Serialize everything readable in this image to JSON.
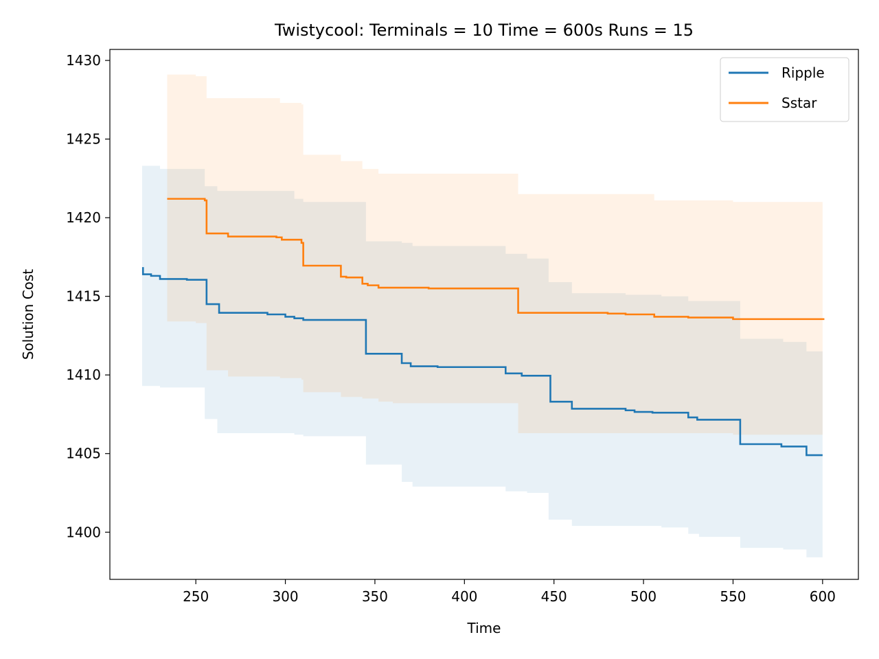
{
  "chart_data": {
    "type": "line",
    "title": "Twistycool:  Terminals = 10  Time = 600s  Runs = 15",
    "xlabel": "Time",
    "ylabel": "Solution Cost",
    "xlim": [
      202,
      620
    ],
    "ylim": [
      1397,
      1430.7
    ],
    "xticks": [
      250,
      300,
      350,
      400,
      450,
      500,
      550,
      600
    ],
    "yticks": [
      1400,
      1405,
      1410,
      1415,
      1420,
      1425,
      1430
    ],
    "grid": false,
    "legend": "top-right",
    "series": [
      {
        "name": "Ripple",
        "color": "#1f77b4",
        "band_color": "#1f77b4",
        "band_opacity": 0.1,
        "steps": [
          [
            220,
            1416.8
          ],
          [
            220.5,
            1416.4
          ],
          [
            225,
            1416.3
          ],
          [
            230,
            1416.1
          ],
          [
            245,
            1416.05
          ],
          [
            256,
            1414.5
          ],
          [
            263,
            1413.95
          ],
          [
            290,
            1413.85
          ],
          [
            300,
            1413.7
          ],
          [
            305,
            1413.6
          ],
          [
            310,
            1413.5
          ],
          [
            345,
            1411.35
          ],
          [
            365,
            1410.75
          ],
          [
            370,
            1410.55
          ],
          [
            385,
            1410.5
          ],
          [
            423,
            1410.1
          ],
          [
            432,
            1409.95
          ],
          [
            448,
            1408.3
          ],
          [
            460,
            1407.85
          ],
          [
            490,
            1407.75
          ],
          [
            495,
            1407.65
          ],
          [
            505,
            1407.6
          ],
          [
            525,
            1407.3
          ],
          [
            530,
            1407.15
          ],
          [
            554,
            1405.6
          ],
          [
            577,
            1405.45
          ],
          [
            591,
            1404.9
          ],
          [
            600,
            1404.9
          ]
        ],
        "band_steps": [
          [
            220,
            1409.3,
            1423.3
          ],
          [
            230,
            1409.2,
            1423.1
          ],
          [
            255,
            1407.2,
            1422.0
          ],
          [
            262,
            1406.3,
            1421.7
          ],
          [
            305,
            1406.2,
            1421.2
          ],
          [
            310,
            1406.1,
            1421.0
          ],
          [
            345,
            1404.3,
            1418.5
          ],
          [
            365,
            1403.2,
            1418.4
          ],
          [
            371,
            1402.9,
            1418.2
          ],
          [
            423,
            1402.6,
            1417.7
          ],
          [
            435,
            1402.5,
            1417.4
          ],
          [
            447,
            1400.8,
            1415.9
          ],
          [
            460,
            1400.4,
            1415.2
          ],
          [
            490,
            1400.4,
            1415.1
          ],
          [
            510,
            1400.3,
            1415.0
          ],
          [
            525,
            1399.9,
            1414.7
          ],
          [
            531,
            1399.7,
            1414.7
          ],
          [
            554,
            1399.0,
            1412.3
          ],
          [
            578,
            1398.9,
            1412.1
          ],
          [
            591,
            1398.4,
            1411.5
          ],
          [
            600,
            1398.4,
            1411.5
          ]
        ]
      },
      {
        "name": "Sstar",
        "color": "#ff7f0e",
        "band_color": "#ff7f0e",
        "band_opacity": 0.1,
        "steps": [
          [
            234,
            1421.2
          ],
          [
            255,
            1421.1
          ],
          [
            256,
            1419.0
          ],
          [
            268,
            1418.8
          ],
          [
            295,
            1418.75
          ],
          [
            298,
            1418.6
          ],
          [
            309,
            1418.4
          ],
          [
            310,
            1416.95
          ],
          [
            331,
            1416.25
          ],
          [
            334,
            1416.2
          ],
          [
            343,
            1415.8
          ],
          [
            346,
            1415.7
          ],
          [
            352,
            1415.55
          ],
          [
            380,
            1415.5
          ],
          [
            430,
            1413.95
          ],
          [
            480,
            1413.9
          ],
          [
            490,
            1413.85
          ],
          [
            506,
            1413.7
          ],
          [
            525,
            1413.65
          ],
          [
            550,
            1413.55
          ],
          [
            600,
            1413.55
          ],
          [
            601,
            1413.55
          ]
        ],
        "band_steps": [
          [
            234,
            1413.4,
            1429.1
          ],
          [
            250,
            1413.3,
            1429.0
          ],
          [
            256,
            1410.3,
            1427.6
          ],
          [
            268,
            1409.9,
            1427.6
          ],
          [
            297,
            1409.8,
            1427.3
          ],
          [
            309,
            1409.7,
            1427.2
          ],
          [
            310,
            1408.9,
            1424.0
          ],
          [
            331,
            1408.6,
            1423.6
          ],
          [
            343,
            1408.5,
            1423.1
          ],
          [
            352,
            1408.3,
            1422.8
          ],
          [
            360,
            1408.2,
            1422.8
          ],
          [
            430,
            1406.3,
            1421.5
          ],
          [
            506,
            1406.3,
            1421.1
          ],
          [
            550,
            1406.2,
            1421.0
          ],
          [
            600,
            1406.2,
            1421.0
          ]
        ]
      }
    ]
  }
}
